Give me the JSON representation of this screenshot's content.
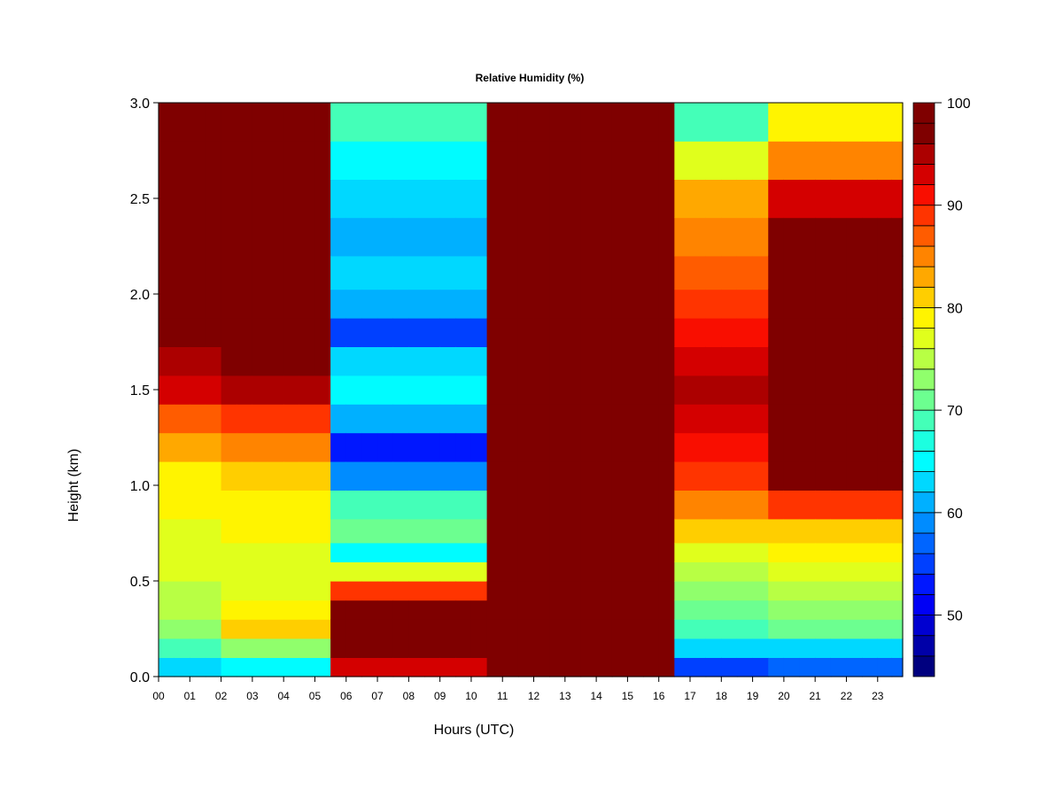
{
  "chart_data": {
    "type": "heatmap",
    "title": "Relative Humidity (%)",
    "xlabel": "Hours (UTC)",
    "ylabel": "Height (km)",
    "xlim": [
      0,
      23.8
    ],
    "ylim": [
      0,
      3.0
    ],
    "x_ticks": [
      "00",
      "01",
      "02",
      "03",
      "04",
      "05",
      "06",
      "07",
      "08",
      "09",
      "10",
      "11",
      "12",
      "13",
      "14",
      "15",
      "16",
      "17",
      "18",
      "19",
      "20",
      "21",
      "22",
      "23"
    ],
    "y_ticks": [
      "0.0",
      "0.5",
      "1.0",
      "1.5",
      "2.0",
      "2.5",
      "3.0"
    ],
    "colorbar": {
      "min": 44,
      "max": 100,
      "step": 2,
      "tick_labels": [
        "50",
        "60",
        "70",
        "80",
        "90",
        "100"
      ],
      "colors": [
        "#00007f",
        "#0000a8",
        "#0000d0",
        "#0000f5",
        "#0017ff",
        "#0040ff",
        "#0065ff",
        "#008cff",
        "#00b0ff",
        "#00d8ff",
        "#00fcff",
        "#1cffe0",
        "#44ffb8",
        "#6cff90",
        "#90ff6c",
        "#b8ff44",
        "#e0ff1c",
        "#fff400",
        "#ffce00",
        "#ffa800",
        "#ff8400",
        "#ff5c00",
        "#ff3400",
        "#f90e00",
        "#d40000",
        "#ac0000",
        "#7f0000",
        "#7f0000"
      ]
    },
    "heights_km": [
      0.05,
      0.15,
      0.25,
      0.35,
      0.45,
      0.55,
      0.65,
      0.75,
      0.9,
      1.05,
      1.2,
      1.35,
      1.5,
      1.65,
      1.8,
      1.95,
      2.1,
      2.3,
      2.5,
      2.7,
      2.9
    ],
    "hours": [
      0.25,
      0.75,
      1.25,
      1.75,
      2.25,
      2.75,
      3.25,
      3.75,
      4.25,
      4.75,
      5.25,
      5.75,
      6.25,
      6.75,
      7.25,
      7.75,
      8.25,
      8.75,
      9.25,
      9.75,
      10.25,
      10.75,
      11.25,
      11.75,
      12.25,
      12.75,
      13.25,
      13.75,
      14.25,
      14.75,
      15.25,
      15.75,
      16.25,
      16.75,
      17.25,
      17.75,
      18.25,
      18.75,
      19.25,
      19.75,
      20.25,
      20.75,
      21.25,
      21.75,
      22.25,
      22.75,
      23.25,
      23.65
    ],
    "profiles": [
      {
        "from_hour": 0.0,
        "to_hour": 2.0,
        "rh": [
          62,
          68,
          72,
          74,
          75,
          76,
          76,
          77,
          78,
          79,
          82,
          86,
          92,
          94,
          96,
          100,
          100,
          100,
          100,
          100,
          100
        ]
      },
      {
        "from_hour": 2.0,
        "to_hour": 5.5,
        "rh": [
          64,
          72,
          80,
          78,
          76,
          77,
          77,
          78,
          79,
          80,
          84,
          88,
          94,
          96,
          96,
          98,
          100,
          100,
          100,
          100,
          100
        ]
      },
      {
        "from_hour": 5.5,
        "to_hour": 10.6,
        "rh": [
          92,
          100,
          96,
          100,
          88,
          76,
          64,
          70,
          68,
          58,
          52,
          60,
          64,
          62,
          54,
          60,
          62,
          60,
          62,
          64,
          68
        ]
      },
      {
        "from_hour": 10.6,
        "to_hour": 16.3,
        "rh": [
          96,
          100,
          100,
          100,
          100,
          100,
          100,
          100,
          100,
          100,
          100,
          100,
          100,
          100,
          100,
          100,
          100,
          100,
          100,
          100,
          100
        ]
      },
      {
        "from_hour": 16.3,
        "to_hour": 19.6,
        "rh": [
          54,
          62,
          68,
          70,
          72,
          74,
          76,
          80,
          84,
          88,
          90,
          92,
          94,
          92,
          90,
          88,
          86,
          84,
          82,
          76,
          68
        ]
      },
      {
        "from_hour": 19.6,
        "to_hour": 23.8,
        "rh": [
          56,
          62,
          70,
          72,
          74,
          76,
          78,
          80,
          88,
          96,
          100,
          100,
          100,
          100,
          100,
          98,
          98,
          96,
          92,
          84,
          78
        ]
      }
    ]
  }
}
